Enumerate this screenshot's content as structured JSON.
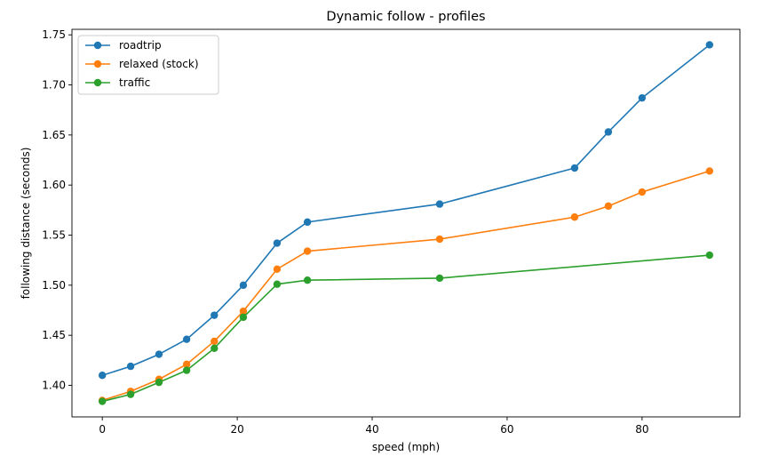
{
  "chart_data": {
    "type": "line",
    "title": "Dynamic follow - profiles",
    "xlabel": "speed (mph)",
    "ylabel": "following distance (seconds)",
    "xlim": [
      -4.5,
      94.5
    ],
    "ylim": [
      1.3685,
      1.7555
    ],
    "xticks": [
      0,
      20,
      40,
      60,
      80
    ],
    "xtick_labels": [
      "0",
      "20",
      "40",
      "60",
      "80"
    ],
    "yticks": [
      1.4,
      1.45,
      1.5,
      1.55,
      1.6,
      1.65,
      1.7,
      1.75
    ],
    "ytick_labels": [
      "1.40",
      "1.45",
      "1.50",
      "1.55",
      "1.60",
      "1.65",
      "1.70",
      "1.75"
    ],
    "grid": false,
    "legend_position": "top-left",
    "x": [
      0.0,
      4.2,
      8.4,
      12.5,
      16.6,
      20.9,
      25.9,
      30.4,
      50.0,
      70.0,
      75.0,
      80.0,
      90.0
    ],
    "series": [
      {
        "name": "roadtrip",
        "color": "#1f77b4",
        "values": [
          1.41,
          1.419,
          1.431,
          1.446,
          1.47,
          1.5,
          1.542,
          1.563,
          1.581,
          1.617,
          1.653,
          1.687,
          1.74
        ]
      },
      {
        "name": "relaxed (stock)",
        "color": "#ff7f0e",
        "values": [
          1.385,
          1.394,
          1.406,
          1.421,
          1.444,
          1.474,
          1.516,
          1.534,
          1.546,
          1.568,
          1.579,
          1.593,
          1.614
        ]
      },
      {
        "name": "traffic",
        "color": "#2ca02c",
        "values": [
          1.384,
          1.391,
          1.403,
          1.415,
          1.437,
          1.468,
          1.501,
          1.505,
          1.507,
          null,
          null,
          null,
          1.53
        ]
      }
    ]
  }
}
